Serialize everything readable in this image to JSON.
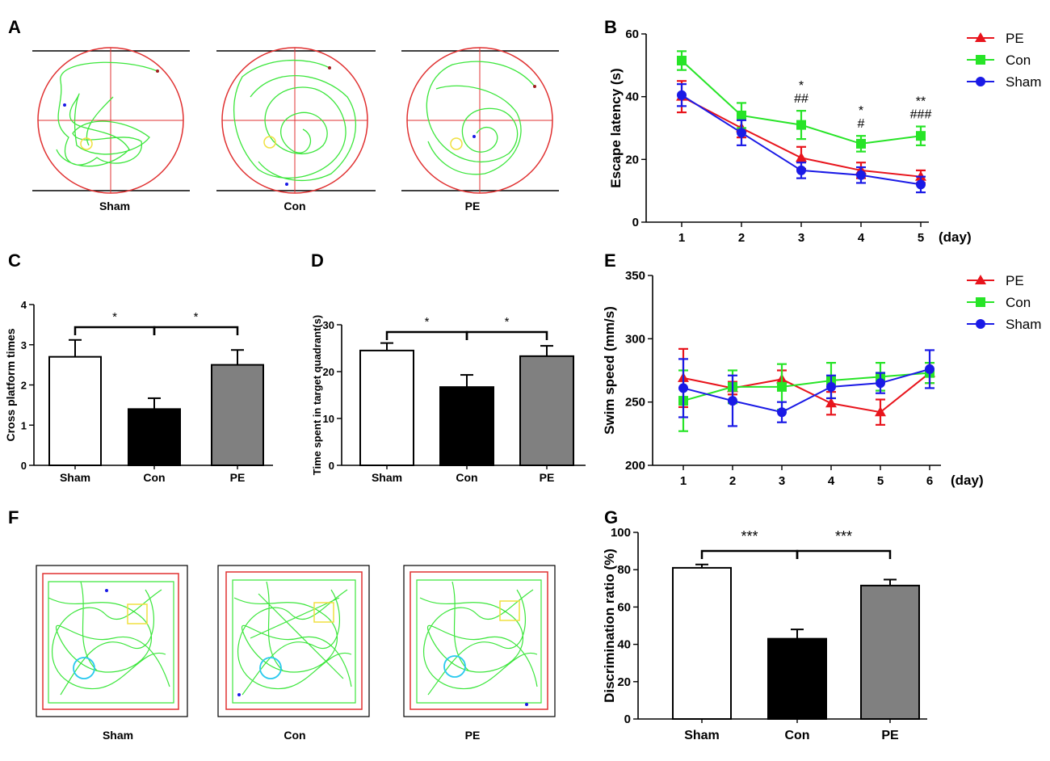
{
  "panel_letters": [
    "A",
    "B",
    "C",
    "D",
    "E",
    "F",
    "G"
  ],
  "maze_panels": {
    "labels": [
      "Sham",
      "Con",
      "PE"
    ]
  },
  "open_field_panels": {
    "labels": [
      "Sham",
      "Con",
      "PE"
    ]
  },
  "colors": {
    "pe": "#e8141c",
    "con": "#27e427",
    "sham": "#1a1ae6",
    "track": "#3ce63c",
    "circle_pool": "#e03030",
    "platform": "#f0e040",
    "novel_circle": "#29c9ee",
    "gray_bar": "#808080"
  },
  "chart_data": [
    {
      "id": "B",
      "type": "line",
      "title": "",
      "xlabel": "(day)",
      "ylabel": "Escape latency  (s)",
      "x": [
        1,
        2,
        3,
        4,
        5
      ],
      "ylim": [
        0,
        60
      ],
      "yticks": [
        0,
        20,
        40,
        60
      ],
      "series": [
        {
          "name": "PE",
          "marker": "triangle",
          "values": [
            40,
            30,
            20.5,
            16.5,
            14.5
          ],
          "errors": [
            5,
            3,
            3.5,
            2.5,
            2
          ]
        },
        {
          "name": "Con",
          "marker": "square",
          "values": [
            51.5,
            34,
            31,
            25,
            27.5
          ],
          "errors": [
            3,
            4,
            4.5,
            2.5,
            3
          ]
        },
        {
          "name": "Sham",
          "marker": "circle",
          "values": [
            40.5,
            28.5,
            16.5,
            15,
            12
          ],
          "errors": [
            3.5,
            4,
            2.5,
            2.5,
            2.5
          ]
        }
      ],
      "annotations": [
        {
          "x": 3,
          "lines": [
            "*",
            "##"
          ]
        },
        {
          "x": 4,
          "lines": [
            "*",
            "#"
          ]
        },
        {
          "x": 5,
          "lines": [
            "**",
            "###"
          ]
        }
      ],
      "legend": "top-right"
    },
    {
      "id": "C",
      "type": "bar",
      "categories": [
        "Sham",
        "Con",
        "PE"
      ],
      "values": [
        2.7,
        1.4,
        2.5
      ],
      "errors": [
        0.42,
        0.27,
        0.37
      ],
      "ylabel": "Cross platform times",
      "ylim": [
        0,
        4
      ],
      "yticks": [
        0,
        1,
        2,
        3,
        4
      ],
      "significance": [
        {
          "from": 0,
          "to": 1,
          "label": "*"
        },
        {
          "from": 1,
          "to": 2,
          "label": "*"
        }
      ]
    },
    {
      "id": "D",
      "type": "bar",
      "categories": [
        "Sham",
        "Con",
        "PE"
      ],
      "values": [
        24.5,
        16.7,
        23.3
      ],
      "errors": [
        1.6,
        2.6,
        2.2
      ],
      "ylabel": "Time spent in target quadrant(s)",
      "ylim": [
        0,
        30
      ],
      "yticks": [
        0,
        10,
        20,
        30
      ],
      "significance": [
        {
          "from": 0,
          "to": 1,
          "label": "*"
        },
        {
          "from": 1,
          "to": 2,
          "label": "*"
        }
      ]
    },
    {
      "id": "E",
      "type": "line",
      "xlabel": "(day)",
      "ylabel": "Swim speed (mm/s)",
      "x": [
        1,
        2,
        3,
        4,
        5,
        6
      ],
      "ylim": [
        200,
        350
      ],
      "yticks": [
        200,
        250,
        300,
        350
      ],
      "series": [
        {
          "name": "PE",
          "marker": "triangle",
          "values": [
            269,
            261,
            268,
            249,
            242,
            273
          ],
          "errors": [
            23,
            5,
            7,
            9,
            10,
            8
          ]
        },
        {
          "name": "Con",
          "marker": "square",
          "values": [
            251,
            262,
            262,
            267,
            270,
            273
          ],
          "errors": [
            24,
            13,
            18,
            14,
            11,
            8
          ]
        },
        {
          "name": "Sham",
          "marker": "circle",
          "values": [
            261,
            251,
            242,
            262,
            265,
            276
          ],
          "errors": [
            23,
            20,
            8,
            9,
            8,
            15
          ]
        }
      ],
      "legend": "top-right"
    },
    {
      "id": "G",
      "type": "bar",
      "categories": [
        "Sham",
        "Con",
        "PE"
      ],
      "values": [
        81,
        43,
        71.5
      ],
      "errors": [
        1.8,
        5,
        3.2
      ],
      "ylabel": "Discrimination ratio (%)",
      "ylim": [
        0,
        100
      ],
      "yticks": [
        0,
        20,
        40,
        60,
        80,
        100
      ],
      "significance": [
        {
          "from": 0,
          "to": 1,
          "label": "***"
        },
        {
          "from": 1,
          "to": 2,
          "label": "***"
        }
      ]
    }
  ]
}
